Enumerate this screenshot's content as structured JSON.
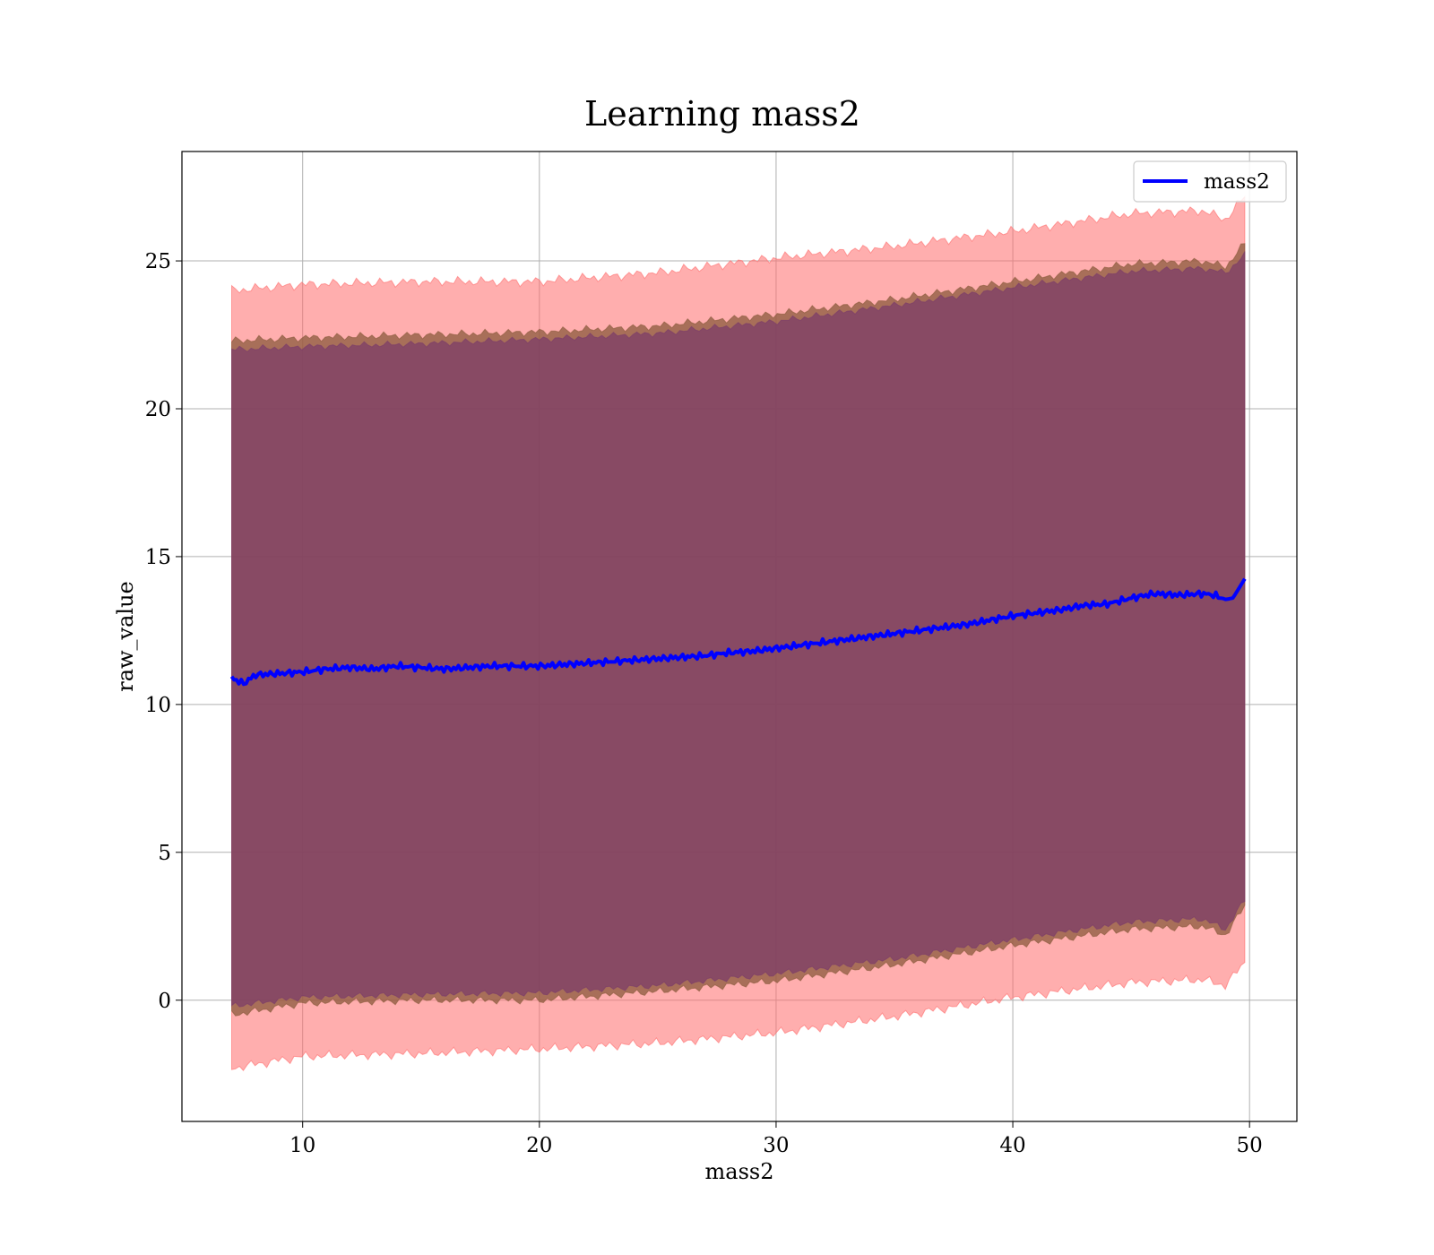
{
  "chart_data": {
    "type": "line",
    "title": "Learning mass2",
    "xlabel": "mass2",
    "ylabel": "raw_value",
    "xlim": [
      4.9,
      52
    ],
    "ylim": [
      -4.1,
      28.7
    ],
    "xticks": [
      10,
      20,
      30,
      40,
      50
    ],
    "yticks": [
      0,
      5,
      10,
      15,
      20,
      25
    ],
    "grid": true,
    "legend_placement": "upper right",
    "colors": {
      "line": "#0000ff",
      "outer_band": "#ff6b6b",
      "inner_band": "#8b5a3c",
      "innermost_band": "#7a3a6a",
      "grid": "#b0b0b0"
    },
    "series": [
      {
        "name": "mass2",
        "x": [
          7.0,
          7.5,
          8,
          9,
          10,
          11,
          12,
          13,
          14,
          15,
          16,
          17,
          18,
          19,
          20,
          21,
          22,
          23,
          24,
          25,
          26,
          27,
          28,
          29,
          30,
          31,
          32,
          33,
          34,
          35,
          36,
          37,
          38,
          39,
          40,
          41,
          42,
          43,
          44,
          45,
          46,
          47,
          48,
          48.5,
          49,
          49.3,
          49.8
        ],
        "y": [
          10.9,
          10.7,
          11.0,
          11.05,
          11.1,
          11.2,
          11.25,
          11.2,
          11.3,
          11.25,
          11.2,
          11.25,
          11.3,
          11.3,
          11.3,
          11.35,
          11.4,
          11.45,
          11.5,
          11.55,
          11.6,
          11.65,
          11.75,
          11.8,
          11.9,
          12.0,
          12.1,
          12.2,
          12.3,
          12.4,
          12.5,
          12.6,
          12.7,
          12.85,
          13.0,
          13.1,
          13.2,
          13.35,
          13.4,
          13.6,
          13.75,
          13.7,
          13.75,
          13.7,
          13.55,
          13.6,
          14.25
        ]
      }
    ],
    "bands": [
      {
        "role": "outer",
        "x": [
          7.0,
          10,
          15,
          20,
          25,
          30,
          35,
          40,
          45,
          48,
          49,
          49.8
        ],
        "upper": [
          24.0,
          24.2,
          24.3,
          24.3,
          24.6,
          25.1,
          25.5,
          26.0,
          26.6,
          26.7,
          26.4,
          27.2
        ],
        "lower": [
          -2.3,
          -1.9,
          -1.8,
          -1.65,
          -1.45,
          -1.1,
          -0.55,
          0.1,
          0.6,
          0.7,
          0.5,
          1.3
        ]
      },
      {
        "role": "middle",
        "x": [
          7.0,
          10,
          15,
          20,
          25,
          30,
          35,
          40,
          45,
          48,
          49,
          49.8
        ],
        "upper": [
          22.3,
          22.4,
          22.5,
          22.6,
          22.8,
          23.2,
          23.7,
          24.3,
          24.9,
          25.0,
          24.8,
          25.6
        ],
        "lower": [
          -0.5,
          -0.1,
          0.0,
          0.0,
          0.3,
          0.65,
          1.2,
          1.85,
          2.4,
          2.5,
          2.2,
          3.2
        ]
      },
      {
        "role": "inner",
        "x": [
          7.0,
          10,
          15,
          20,
          25,
          30,
          35,
          40,
          45,
          48,
          49,
          49.8
        ],
        "upper": [
          22.0,
          22.1,
          22.2,
          22.35,
          22.55,
          22.95,
          23.5,
          24.1,
          24.65,
          24.75,
          24.6,
          25.2
        ],
        "lower": [
          -0.2,
          0.1,
          0.2,
          0.25,
          0.5,
          0.9,
          1.4,
          2.05,
          2.65,
          2.75,
          2.4,
          3.4
        ]
      }
    ]
  }
}
